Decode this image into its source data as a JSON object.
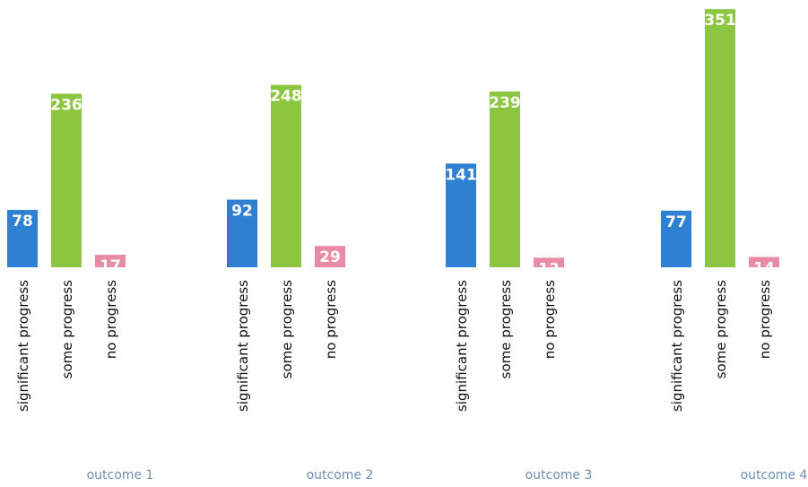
{
  "chart_data": {
    "type": "bar",
    "categories": [
      "outcome 1",
      "outcome 2",
      "outcome 3",
      "outcome 4"
    ],
    "series": [
      {
        "name": "significant progress",
        "color": "#2f80d2",
        "values": [
          78,
          92,
          141,
          77
        ]
      },
      {
        "name": "some progress",
        "color": "#8cc540",
        "values": [
          236,
          248,
          239,
          351
        ]
      },
      {
        "name": "no progress",
        "color": "#e98aa6",
        "values": [
          17,
          29,
          13,
          14
        ]
      }
    ]
  }
}
